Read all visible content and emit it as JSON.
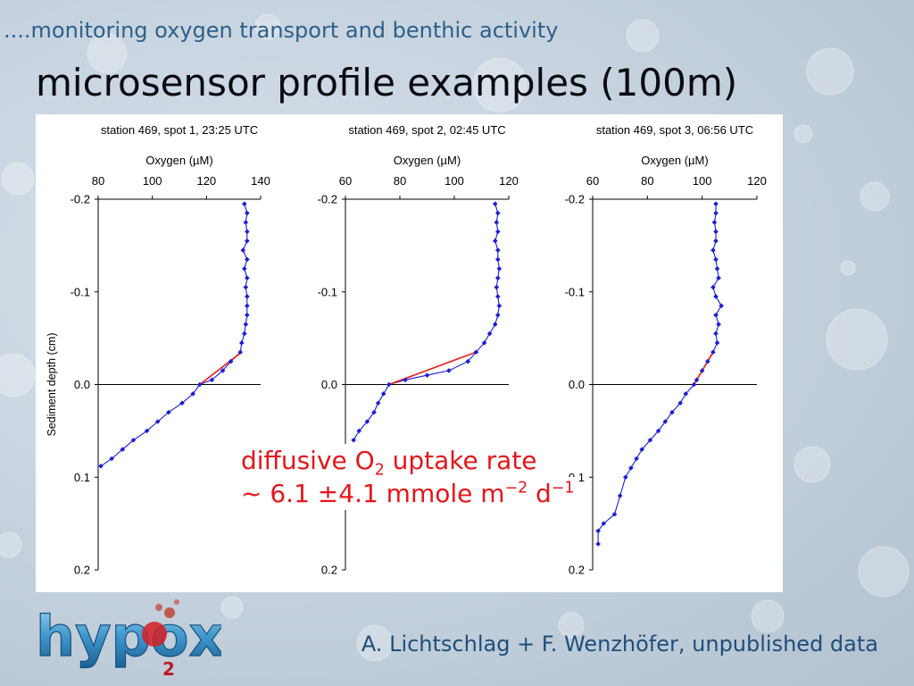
{
  "header": {
    "kicker": "....monitoring oxygen transport and benthic activity",
    "title": "microsensor profile examples (100m)"
  },
  "callout": {
    "line1_pre": "diffusive O",
    "line1_sub": "2",
    "line1_post": " uptake rate",
    "line2_pre": "~ 6.1 ±4.1 mmole m",
    "line2_sup1": "−2",
    "line2_mid": " d",
    "line2_sup2": "−1"
  },
  "footer": {
    "credit": "A. Lichtschlag + F. Wenzhöfer, unpublished data",
    "logo_text": "hypox",
    "logo_sub": "2"
  },
  "colors": {
    "profile": "#1c1cd9",
    "fit": "#e81a1a",
    "accent_red": "#e5161b",
    "header_blue": "#2d5f8a"
  },
  "chart_data": [
    {
      "type": "scatter",
      "title": "station 469, spot 1, 23:25 UTC",
      "xlabel": "Oxygen (µM)",
      "ylabel": "Sediment depth (cm)",
      "xlim": [
        80,
        140
      ],
      "ylim": [
        -0.2,
        0.2
      ],
      "x_ticks": [
        "80",
        "100",
        "120",
        "140"
      ],
      "y_ticks": [
        "-0.2",
        "-0.1",
        "0.0",
        "0.1",
        "0.2"
      ],
      "grid": false,
      "points": [
        [
          134,
          -0.195
        ],
        [
          135,
          -0.185
        ],
        [
          134.5,
          -0.175
        ],
        [
          135,
          -0.165
        ],
        [
          135,
          -0.155
        ],
        [
          133.5,
          -0.145
        ],
        [
          135,
          -0.135
        ],
        [
          134,
          -0.125
        ],
        [
          135,
          -0.115
        ],
        [
          134.5,
          -0.105
        ],
        [
          135,
          -0.095
        ],
        [
          135,
          -0.085
        ],
        [
          135,
          -0.075
        ],
        [
          134.5,
          -0.065
        ],
        [
          134,
          -0.055
        ],
        [
          133,
          -0.045
        ],
        [
          132.5,
          -0.035
        ],
        [
          129,
          -0.025
        ],
        [
          126,
          -0.015
        ],
        [
          122,
          -0.005
        ],
        [
          117.5,
          0.0
        ],
        [
          115,
          0.01
        ],
        [
          111,
          0.02
        ],
        [
          106,
          0.03
        ],
        [
          102,
          0.04
        ],
        [
          98,
          0.05
        ],
        [
          93,
          0.06
        ],
        [
          89,
          0.07
        ],
        [
          85,
          0.08
        ],
        [
          81,
          0.088
        ]
      ],
      "fit": [
        [
          133,
          -0.035
        ],
        [
          117.5,
          0.0
        ]
      ]
    },
    {
      "type": "scatter",
      "title": "station 469, spot 2, 02:45 UTC",
      "xlabel": "Oxygen (µM)",
      "xlim": [
        60,
        120
      ],
      "ylim": [
        -0.2,
        0.2
      ],
      "x_ticks": [
        "60",
        "80",
        "100",
        "120"
      ],
      "y_ticks": [
        "-0.2",
        "-0.1",
        "0.0",
        "0.1",
        "0.2"
      ],
      "grid": false,
      "points": [
        [
          115,
          -0.195
        ],
        [
          116,
          -0.185
        ],
        [
          115.5,
          -0.175
        ],
        [
          116,
          -0.165
        ],
        [
          115,
          -0.155
        ],
        [
          116,
          -0.145
        ],
        [
          116,
          -0.135
        ],
        [
          116.5,
          -0.125
        ],
        [
          116,
          -0.115
        ],
        [
          115.5,
          -0.105
        ],
        [
          116,
          -0.095
        ],
        [
          116.5,
          -0.085
        ],
        [
          116,
          -0.075
        ],
        [
          115,
          -0.065
        ],
        [
          113,
          -0.055
        ],
        [
          111,
          -0.045
        ],
        [
          108,
          -0.035
        ],
        [
          105,
          -0.025
        ],
        [
          98,
          -0.015
        ],
        [
          90,
          -0.01
        ],
        [
          82,
          -0.005
        ],
        [
          76,
          0.0
        ],
        [
          74,
          0.01
        ],
        [
          72,
          0.02
        ],
        [
          70.5,
          0.03
        ],
        [
          68,
          0.04
        ],
        [
          65,
          0.05
        ],
        [
          63,
          0.06
        ]
      ],
      "fit": [
        [
          108,
          -0.035
        ],
        [
          76,
          0.0
        ]
      ]
    },
    {
      "type": "scatter",
      "title": "station 469, spot 3, 06:56 UTC",
      "xlabel": "Oxygen (µM)",
      "xlim": [
        60,
        120
      ],
      "ylim": [
        -0.2,
        0.2
      ],
      "x_ticks": [
        "60",
        "80",
        "100",
        "120"
      ],
      "y_ticks": [
        "-0.2",
        "-0.1",
        "0.0",
        "0.1",
        "0.2"
      ],
      "grid": false,
      "points": [
        [
          105,
          -0.195
        ],
        [
          105,
          -0.185
        ],
        [
          104.5,
          -0.175
        ],
        [
          105,
          -0.165
        ],
        [
          105,
          -0.155
        ],
        [
          104,
          -0.145
        ],
        [
          105,
          -0.135
        ],
        [
          105.5,
          -0.125
        ],
        [
          106,
          -0.115
        ],
        [
          104,
          -0.105
        ],
        [
          105,
          -0.095
        ],
        [
          107,
          -0.085
        ],
        [
          105,
          -0.075
        ],
        [
          106,
          -0.065
        ],
        [
          105,
          -0.055
        ],
        [
          105.5,
          -0.045
        ],
        [
          104,
          -0.035
        ],
        [
          102,
          -0.025
        ],
        [
          100,
          -0.015
        ],
        [
          98,
          -0.005
        ],
        [
          97,
          0.0
        ],
        [
          94,
          0.01
        ],
        [
          92,
          0.02
        ],
        [
          89,
          0.03
        ],
        [
          86.5,
          0.04
        ],
        [
          84,
          0.05
        ],
        [
          81,
          0.06
        ],
        [
          78,
          0.07
        ],
        [
          76,
          0.08
        ],
        [
          74,
          0.09
        ],
        [
          72,
          0.1
        ],
        [
          70,
          0.12
        ],
        [
          68,
          0.14
        ],
        [
          64,
          0.15
        ],
        [
          62,
          0.158
        ],
        [
          62,
          0.172
        ]
      ],
      "fit": [
        [
          104,
          -0.035
        ],
        [
          97,
          0.0
        ]
      ]
    }
  ]
}
